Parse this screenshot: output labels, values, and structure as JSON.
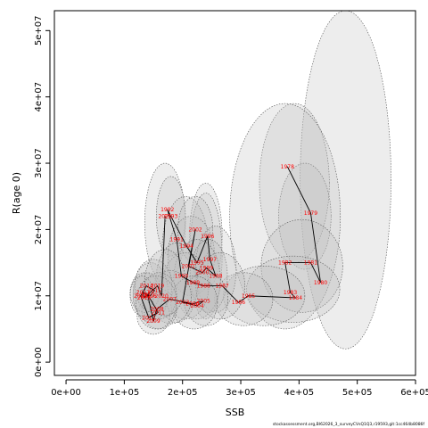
{
  "footer_text": "stockassessment.org,BI62026_3_surveyCVsQ1Q3,r19593,git:1cc464b8086f",
  "chart_data": {
    "type": "scatter",
    "title": "",
    "xlabel": "SSB",
    "ylabel": "R(age 0)",
    "xlim": [
      -20000,
      600000
    ],
    "ylim": [
      -2000000,
      53000000
    ],
    "xticks": [
      0,
      100000,
      200000,
      300000,
      400000,
      500000,
      600000
    ],
    "xtick_labels": [
      "0e+00",
      "1e+05",
      "2e+05",
      "3e+05",
      "4e+05",
      "5e+05",
      "6e+05"
    ],
    "yticks": [
      0,
      10000000,
      20000000,
      30000000,
      40000000,
      50000000
    ],
    "ytick_labels": [
      "0e+00",
      "1e+07",
      "2e+07",
      "3e+07",
      "4e+07",
      "5e+07"
    ],
    "grid": false,
    "point_color": "#ff0000",
    "line_color": "#000000",
    "ellipse_fill": "#bdbdbd",
    "ellipse_stroke": "#555555",
    "points": [
      {
        "year": "1978",
        "x": 380000,
        "y": 29500000
      },
      {
        "year": "1979",
        "x": 420000,
        "y": 22500000
      },
      {
        "year": "1980",
        "x": 437000,
        "y": 12000000
      },
      {
        "year": "1981",
        "x": 420000,
        "y": 15000000
      },
      {
        "year": "1982",
        "x": 376000,
        "y": 15000000
      },
      {
        "year": "1983",
        "x": 385000,
        "y": 10500000
      },
      {
        "year": "1984",
        "x": 394000,
        "y": 9700000
      },
      {
        "year": "1985",
        "x": 313000,
        "y": 10000000
      },
      {
        "year": "1986",
        "x": 296000,
        "y": 9000000
      },
      {
        "year": "1987",
        "x": 268000,
        "y": 11500000
      },
      {
        "year": "1988",
        "x": 236000,
        "y": 11500000
      },
      {
        "year": "1989",
        "x": 218000,
        "y": 12000000
      },
      {
        "year": "1990",
        "x": 198000,
        "y": 13000000
      },
      {
        "year": "1991",
        "x": 190000,
        "y": 18500000
      },
      {
        "year": "1992",
        "x": 174000,
        "y": 23000000
      },
      {
        "year": "1993",
        "x": 180000,
        "y": 22000000
      },
      {
        "year": "1994",
        "x": 207000,
        "y": 17500000
      },
      {
        "year": "1995",
        "x": 225000,
        "y": 15000000
      },
      {
        "year": "1996",
        "x": 243000,
        "y": 19000000
      },
      {
        "year": "1997",
        "x": 247000,
        "y": 15500000
      },
      {
        "year": "1998",
        "x": 257000,
        "y": 13000000
      },
      {
        "year": "1999",
        "x": 241000,
        "y": 14200000
      },
      {
        "year": "2000",
        "x": 234000,
        "y": 13500000
      },
      {
        "year": "2001",
        "x": 210000,
        "y": 14500000
      },
      {
        "year": "2002",
        "x": 222000,
        "y": 20000000
      },
      {
        "year": "2003",
        "x": 200000,
        "y": 9000000
      },
      {
        "year": "2004",
        "x": 225000,
        "y": 8500000
      },
      {
        "year": "2005",
        "x": 236000,
        "y": 9200000
      },
      {
        "year": "2006",
        "x": 217000,
        "y": 8800000
      },
      {
        "year": "2007",
        "x": 178000,
        "y": 9500000
      },
      {
        "year": "2008",
        "x": 156000,
        "y": 8000000
      },
      {
        "year": "2009",
        "x": 150000,
        "y": 6200000
      },
      {
        "year": "2010",
        "x": 140000,
        "y": 10200000
      },
      {
        "year": "2011",
        "x": 158000,
        "y": 7500000
      },
      {
        "year": "2012",
        "x": 142000,
        "y": 6700000
      },
      {
        "year": "2013",
        "x": 128000,
        "y": 10000000
      },
      {
        "year": "2014",
        "x": 138000,
        "y": 11500000
      },
      {
        "year": "2015",
        "x": 152000,
        "y": 10800000
      },
      {
        "year": "2016",
        "x": 144000,
        "y": 10000000
      },
      {
        "year": "2017",
        "x": 132000,
        "y": 10500000
      },
      {
        "year": "2018",
        "x": 134000,
        "y": 9700000
      },
      {
        "year": "2019",
        "x": 157000,
        "y": 11500000
      },
      {
        "year": "2020",
        "x": 164000,
        "y": 10000000
      },
      {
        "year": "2021",
        "x": 170000,
        "y": 22000000
      }
    ],
    "ellipses": [
      {
        "cx": 480000,
        "cy": 27500000,
        "rx": 78000,
        "ry": 25500000
      },
      {
        "cx": 392000,
        "cy": 27000000,
        "rx": 60000,
        "ry": 12000000
      },
      {
        "cx": 410000,
        "cy": 22000000,
        "rx": 45000,
        "ry": 8000000
      },
      {
        "cx": 376000,
        "cy": 22000000,
        "rx": 95000,
        "ry": 17000000
      },
      {
        "cx": 405000,
        "cy": 14500000,
        "rx": 70000,
        "ry": 7000000
      },
      {
        "cx": 390000,
        "cy": 11000000,
        "rx": 80000,
        "ry": 5000000
      },
      {
        "cx": 340000,
        "cy": 10000000,
        "rx": 70000,
        "ry": 4500000
      },
      {
        "cx": 305000,
        "cy": 9500000,
        "rx": 50000,
        "ry": 4000000
      },
      {
        "cx": 170000,
        "cy": 21000000,
        "rx": 35000,
        "ry": 9000000
      },
      {
        "cx": 180000,
        "cy": 22000000,
        "rx": 25000,
        "ry": 6000000
      },
      {
        "cx": 240000,
        "cy": 19000000,
        "rx": 28000,
        "ry": 8000000
      },
      {
        "cx": 240000,
        "cy": 16000000,
        "rx": 28000,
        "ry": 9500000
      },
      {
        "cx": 205000,
        "cy": 17000000,
        "rx": 40000,
        "ry": 8000000
      },
      {
        "cx": 215000,
        "cy": 16000000,
        "rx": 40000,
        "ry": 6000000
      },
      {
        "cx": 222000,
        "cy": 20000000,
        "rx": 30000,
        "ry": 5000000
      },
      {
        "cx": 257000,
        "cy": 14000000,
        "rx": 35000,
        "ry": 6500000
      },
      {
        "cx": 245000,
        "cy": 13000000,
        "rx": 32000,
        "ry": 5500000
      },
      {
        "cx": 225000,
        "cy": 12500000,
        "rx": 40000,
        "ry": 6000000
      },
      {
        "cx": 205000,
        "cy": 11500000,
        "rx": 40000,
        "ry": 5000000
      },
      {
        "cx": 190000,
        "cy": 12000000,
        "rx": 36000,
        "ry": 6000000
      },
      {
        "cx": 265000,
        "cy": 11500000,
        "rx": 42000,
        "ry": 5000000
      },
      {
        "cx": 240000,
        "cy": 9500000,
        "rx": 38000,
        "ry": 4000000
      },
      {
        "cx": 220000,
        "cy": 9000000,
        "rx": 40000,
        "ry": 4000000
      },
      {
        "cx": 180000,
        "cy": 9800000,
        "rx": 35000,
        "ry": 4000000
      },
      {
        "cx": 160000,
        "cy": 8000000,
        "rx": 30000,
        "ry": 3000000
      },
      {
        "cx": 150000,
        "cy": 7000000,
        "rx": 28000,
        "ry": 2800000
      },
      {
        "cx": 145000,
        "cy": 10500000,
        "rx": 30000,
        "ry": 4500000
      },
      {
        "cx": 140000,
        "cy": 10000000,
        "rx": 25000,
        "ry": 3500000
      },
      {
        "cx": 135000,
        "cy": 10500000,
        "rx": 25000,
        "ry": 3000000
      },
      {
        "cx": 150000,
        "cy": 11500000,
        "rx": 32000,
        "ry": 4000000
      },
      {
        "cx": 160000,
        "cy": 10000000,
        "rx": 30000,
        "ry": 3500000
      },
      {
        "cx": 130000,
        "cy": 10000000,
        "rx": 20000,
        "ry": 3000000
      },
      {
        "cx": 155000,
        "cy": 9000000,
        "rx": 35000,
        "ry": 4000000
      },
      {
        "cx": 170000,
        "cy": 12000000,
        "rx": 35000,
        "ry": 5000000
      }
    ]
  }
}
